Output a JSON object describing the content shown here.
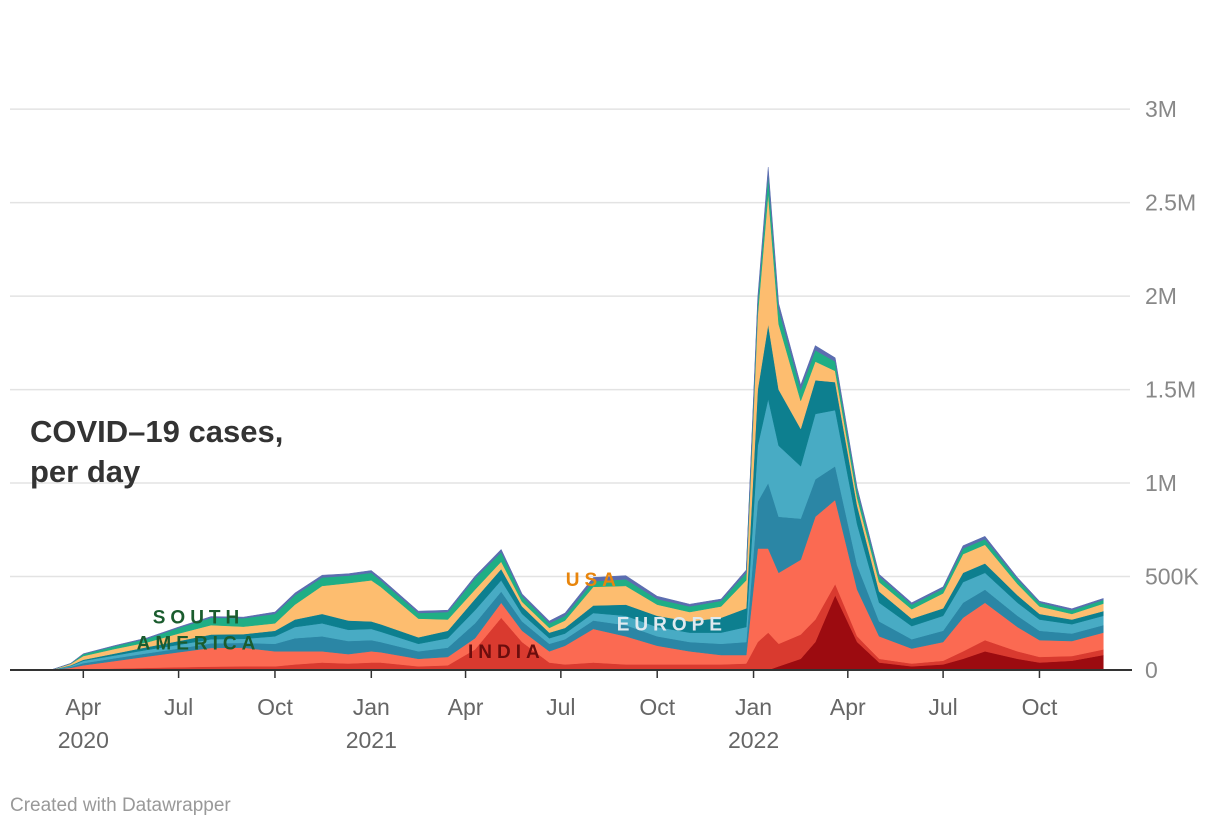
{
  "title_lines": [
    "COVID–19 cases,",
    "per day"
  ],
  "credit": "Created with Datawrapper",
  "colors": {
    "grid": "#e3e3e3",
    "axis": "#333333",
    "south_america_label": "#1a5c2e",
    "usa_label": "#e8850c",
    "europe_label": "#dfe9ef",
    "india_label": "#6b0d0d"
  },
  "chart_data": {
    "type": "area",
    "stacked": true,
    "ylim": [
      0,
      3400000
    ],
    "yticks": [
      {
        "value": 0,
        "label": "0"
      },
      {
        "value": 500000,
        "label": "500K"
      },
      {
        "value": 1000000,
        "label": "1M"
      },
      {
        "value": 1500000,
        "label": "1.5M"
      },
      {
        "value": 2000000,
        "label": "2M"
      },
      {
        "value": 2500000,
        "label": "2.5M"
      },
      {
        "value": 3000000,
        "label": "3M"
      }
    ],
    "xticks": [
      {
        "date": "2020-04-01",
        "label": "Apr",
        "year": "2020"
      },
      {
        "date": "2020-07-01",
        "label": "Jul",
        "year": ""
      },
      {
        "date": "2020-10-01",
        "label": "Oct",
        "year": ""
      },
      {
        "date": "2021-01-01",
        "label": "Jan",
        "year": "2021"
      },
      {
        "date": "2021-04-01",
        "label": "Apr",
        "year": ""
      },
      {
        "date": "2021-07-01",
        "label": "Jul",
        "year": ""
      },
      {
        "date": "2021-10-01",
        "label": "Oct",
        "year": ""
      },
      {
        "date": "2022-01-01",
        "label": "Jan",
        "year": "2022"
      },
      {
        "date": "2022-04-01",
        "label": "Apr",
        "year": ""
      },
      {
        "date": "2022-07-01",
        "label": "Jul",
        "year": ""
      },
      {
        "date": "2022-10-01",
        "label": "Oct",
        "year": ""
      }
    ],
    "x": [
      "2020-03-01",
      "2020-03-20",
      "2020-04-01",
      "2020-05-01",
      "2020-06-01",
      "2020-07-01",
      "2020-08-01",
      "2020-09-01",
      "2020-10-01",
      "2020-10-20",
      "2020-11-15",
      "2020-12-10",
      "2021-01-01",
      "2021-01-10",
      "2021-02-15",
      "2021-03-15",
      "2021-04-10",
      "2021-05-05",
      "2021-05-25",
      "2021-06-20",
      "2021-07-05",
      "2021-08-01",
      "2021-09-01",
      "2021-10-01",
      "2021-11-01",
      "2021-12-01",
      "2021-12-25",
      "2022-01-05",
      "2022-01-15",
      "2022-01-25",
      "2022-02-15",
      "2022-03-01",
      "2022-03-20",
      "2022-04-10",
      "2022-05-01",
      "2022-06-01",
      "2022-07-01",
      "2022-07-20",
      "2022-08-10",
      "2022-09-10",
      "2022-10-01",
      "2022-11-01",
      "2022-12-01"
    ],
    "series": [
      {
        "name": "",
        "color": "#9c0b10",
        "values": [
          0,
          0,
          0,
          0,
          0,
          0,
          0,
          0,
          0,
          0,
          0,
          0,
          0,
          0,
          0,
          0,
          0,
          0,
          0,
          0,
          0,
          0,
          0,
          0,
          0,
          0,
          0,
          0,
          0,
          20000,
          60000,
          150000,
          400000,
          150000,
          40000,
          20000,
          30000,
          60000,
          100000,
          60000,
          40000,
          50000,
          80000
        ]
      },
      {
        "name": "",
        "color": "#d93a2f",
        "values": [
          0,
          2000,
          5000,
          8000,
          12000,
          15000,
          18000,
          20000,
          20000,
          30000,
          40000,
          35000,
          40000,
          40000,
          20000,
          25000,
          110000,
          280000,
          150000,
          40000,
          30000,
          40000,
          30000,
          30000,
          30000,
          30000,
          35000,
          150000,
          200000,
          120000,
          130000,
          120000,
          60000,
          30000,
          20000,
          15000,
          20000,
          40000,
          60000,
          40000,
          30000,
          25000,
          30000
        ]
      },
      {
        "name": "",
        "color": "#fb6a52",
        "values": [
          0,
          10000,
          20000,
          40000,
          60000,
          80000,
          100000,
          100000,
          80000,
          70000,
          60000,
          50000,
          60000,
          55000,
          40000,
          45000,
          60000,
          80000,
          60000,
          60000,
          100000,
          180000,
          150000,
          100000,
          70000,
          50000,
          45000,
          500000,
          450000,
          380000,
          400000,
          550000,
          450000,
          250000,
          120000,
          80000,
          100000,
          180000,
          200000,
          130000,
          90000,
          80000,
          90000
        ]
      },
      {
        "name": "",
        "color": "#2b86a5",
        "values": [
          0,
          5000,
          12000,
          15000,
          18000,
          20000,
          25000,
          25000,
          40000,
          70000,
          80000,
          70000,
          60000,
          55000,
          40000,
          50000,
          80000,
          60000,
          50000,
          40000,
          35000,
          45000,
          60000,
          50000,
          50000,
          60000,
          70000,
          250000,
          350000,
          300000,
          220000,
          200000,
          180000,
          130000,
          80000,
          50000,
          60000,
          80000,
          70000,
          60000,
          50000,
          40000,
          40000
        ]
      },
      {
        "name": "",
        "color": "#48abc4",
        "values": [
          0,
          5000,
          12000,
          15000,
          18000,
          20000,
          22000,
          22000,
          40000,
          60000,
          70000,
          60000,
          60000,
          55000,
          40000,
          50000,
          70000,
          60000,
          40000,
          30000,
          30000,
          40000,
          50000,
          50000,
          50000,
          60000,
          80000,
          300000,
          450000,
          380000,
          280000,
          350000,
          300000,
          220000,
          100000,
          70000,
          80000,
          110000,
          90000,
          70000,
          60000,
          50000,
          50000
        ]
      },
      {
        "name": "",
        "color": "#0d7f8f",
        "values": [
          0,
          3000,
          6000,
          10000,
          15000,
          20000,
          25000,
          25000,
          30000,
          40000,
          50000,
          50000,
          40000,
          40000,
          35000,
          40000,
          60000,
          60000,
          40000,
          30000,
          30000,
          40000,
          60000,
          60000,
          60000,
          80000,
          100000,
          300000,
          400000,
          300000,
          200000,
          180000,
          150000,
          100000,
          60000,
          40000,
          40000,
          50000,
          50000,
          40000,
          30000,
          25000,
          25000
        ]
      },
      {
        "name": "",
        "color": "#fdbd6f",
        "values": [
          0,
          8000,
          20000,
          25000,
          25000,
          40000,
          50000,
          40000,
          40000,
          80000,
          150000,
          200000,
          220000,
          200000,
          100000,
          60000,
          50000,
          40000,
          25000,
          25000,
          40000,
          100000,
          100000,
          60000,
          50000,
          60000,
          150000,
          400000,
          700000,
          350000,
          150000,
          100000,
          60000,
          40000,
          50000,
          50000,
          80000,
          100000,
          100000,
          60000,
          40000,
          30000,
          40000
        ]
      },
      {
        "name": "",
        "color": "#1fae85",
        "values": [
          0,
          2000,
          10000,
          15000,
          20000,
          30000,
          40000,
          45000,
          50000,
          50000,
          45000,
          40000,
          40000,
          35000,
          30000,
          40000,
          60000,
          50000,
          30000,
          25000,
          25000,
          30000,
          35000,
          30000,
          30000,
          30000,
          40000,
          60000,
          100000,
          80000,
          60000,
          60000,
          50000,
          40000,
          30000,
          25000,
          25000,
          30000,
          30000,
          25000,
          20000,
          20000,
          20000
        ]
      },
      {
        "name": "",
        "color": "#5b6db0",
        "values": [
          0,
          1000,
          2000,
          3000,
          4000,
          5000,
          6000,
          6000,
          10000,
          12000,
          12000,
          10000,
          12000,
          12000,
          10000,
          10000,
          12000,
          15000,
          12000,
          12000,
          15000,
          20000,
          20000,
          15000,
          12000,
          10000,
          15000,
          30000,
          40000,
          30000,
          25000,
          25000,
          20000,
          15000,
          12000,
          10000,
          10000,
          15000,
          15000,
          10000,
          8000,
          8000,
          8000
        ]
      }
    ],
    "annotations": [
      {
        "text": "SOUTH",
        "date": "2020-07-20",
        "value": 250000,
        "color_key": "south_america_label"
      },
      {
        "text": "AMERICA",
        "date": "2020-07-20",
        "value": 110000,
        "color_key": "south_america_label"
      },
      {
        "text": "USA",
        "date": "2021-08-01",
        "value": 450000,
        "color_key": "usa_label"
      },
      {
        "text": "EUROPE",
        "date": "2021-10-15",
        "value": 210000,
        "color_key": "europe_label"
      },
      {
        "text": "INDIA",
        "date": "2021-05-10",
        "value": 65000,
        "color_key": "india_label"
      }
    ]
  }
}
